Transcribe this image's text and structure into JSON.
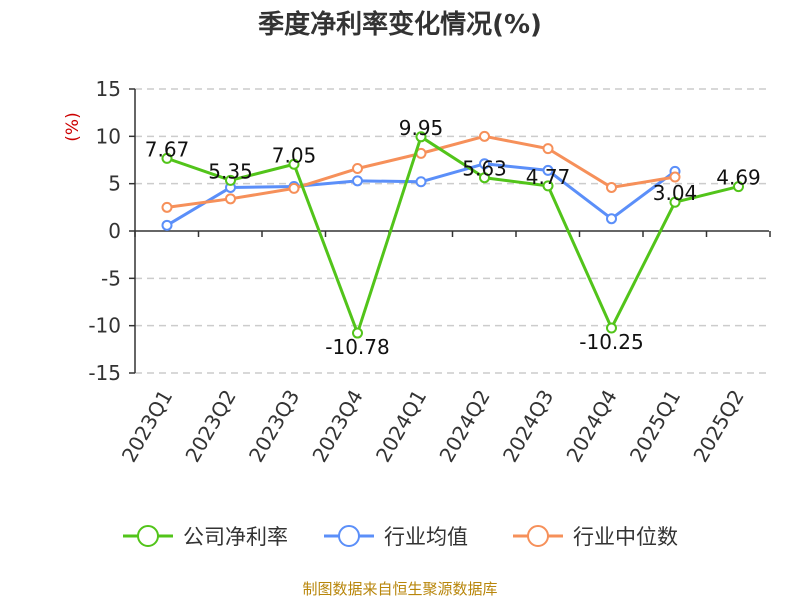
{
  "chart_data": {
    "type": "line",
    "title": "季度净利率变化情况(%)",
    "ylabel": "(%)",
    "xlabel": "",
    "categories": [
      "2023Q1",
      "2023Q2",
      "2023Q3",
      "2023Q4",
      "2024Q1",
      "2024Q2",
      "2024Q3",
      "2024Q4",
      "2025Q1",
      "2025Q2"
    ],
    "ylim": [
      -15,
      15
    ],
    "yticks": [
      15,
      10,
      5,
      0,
      -5,
      -10,
      -15
    ],
    "grid": true,
    "legend_position": "bottom",
    "series": [
      {
        "name": "公司净利率",
        "color": "#52c41a",
        "values": [
          7.67,
          5.35,
          7.05,
          -10.78,
          9.95,
          5.63,
          4.77,
          -10.25,
          3.04,
          4.69
        ],
        "labels": [
          "7.67",
          "5.35",
          "7.05",
          "-10.78",
          "9.95",
          "5.63",
          "4.77",
          "-10.25",
          "3.04",
          "4.69"
        ]
      },
      {
        "name": "行业均值",
        "color": "#5b8ff9",
        "values": [
          0.6,
          4.6,
          4.7,
          5.3,
          5.2,
          7.1,
          6.4,
          1.3,
          6.3,
          null
        ]
      },
      {
        "name": "行业中位数",
        "color": "#f6905a",
        "values": [
          2.5,
          3.4,
          4.5,
          6.6,
          8.2,
          10.0,
          8.7,
          4.6,
          5.7,
          null
        ]
      }
    ],
    "source": "制图数据来自恒生聚源数据库"
  }
}
